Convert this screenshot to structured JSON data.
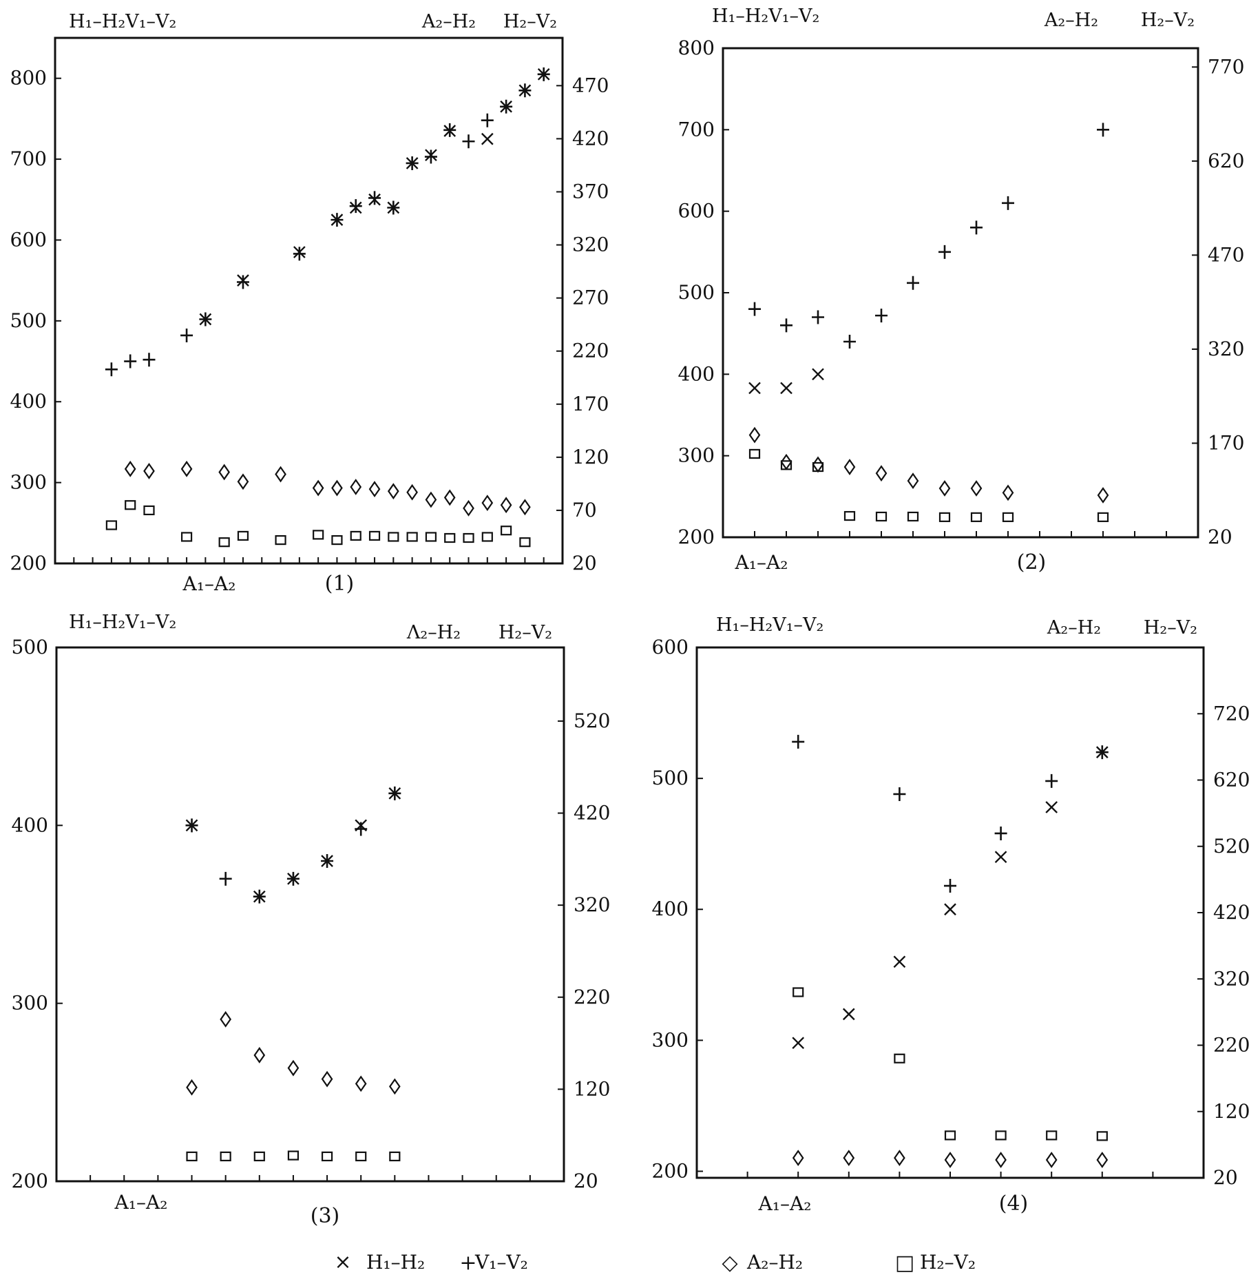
{
  "figure": {
    "legend": {
      "cross_marker": "×",
      "plus_marker": "+",
      "diamond_marker": "◇",
      "square_marker": "□",
      "h1h2": "H₁–H₂",
      "v1v2": "V₁–V₂",
      "a2h2": "A₂–H₂",
      "h2v2": "H₂–V₂"
    }
  },
  "chart_data": [
    {
      "type": "scatter",
      "panel_label": "(1)",
      "left_axis_label": "H₁–H₂V₁–V₂",
      "right_axis_labels": [
        "A₂–H₂",
        "H₂–V₂"
      ],
      "x_label": "A₁–A₂",
      "ylim_left": [
        200,
        850
      ],
      "ylim_right": [
        20,
        515
      ],
      "yticks_left": [
        200,
        300,
        400,
        500,
        600,
        700,
        800
      ],
      "yticks_right": [
        20,
        70,
        120,
        170,
        220,
        270,
        320,
        370,
        420,
        470
      ],
      "xlim": [
        0,
        27
      ],
      "x_ticks": 27,
      "series": [
        {
          "name": "H₁–H₂",
          "marker": "cross",
          "axis": "left",
          "x": [
            8,
            10,
            13,
            15,
            16,
            17,
            18,
            19,
            20,
            21,
            23,
            24,
            25,
            26
          ],
          "y": [
            502,
            550,
            585,
            625,
            640,
            650,
            640,
            695,
            705,
            735,
            725,
            765,
            785,
            805
          ]
        },
        {
          "name": "V₁–V₂",
          "marker": "plus",
          "axis": "left",
          "x": [
            3,
            4,
            5,
            7,
            8,
            10,
            13,
            15,
            16,
            17,
            18,
            19,
            20,
            21,
            22,
            23,
            24,
            25,
            26
          ],
          "y": [
            440,
            450,
            452,
            482,
            502,
            548,
            583,
            625,
            642,
            652,
            640,
            695,
            703,
            736,
            722,
            748,
            765,
            785,
            805
          ]
        },
        {
          "name": "A₂–H₂",
          "marker": "diamond",
          "axis": "right",
          "x": [
            4,
            5,
            7,
            9,
            10,
            12,
            14,
            15,
            16,
            17,
            18,
            19,
            20,
            21,
            22,
            23,
            24,
            25
          ],
          "y": [
            109,
            107,
            109,
            106,
            97,
            104,
            91,
            91,
            92,
            90,
            88,
            87,
            80,
            82,
            72,
            77,
            75,
            73
          ]
        },
        {
          "name": "H₂–V₂",
          "marker": "square",
          "axis": "right",
          "x": [
            3,
            4,
            5,
            7,
            9,
            10,
            12,
            14,
            15,
            16,
            17,
            18,
            19,
            20,
            21,
            22,
            23,
            24,
            25
          ],
          "y": [
            56,
            75,
            70,
            45,
            40,
            46,
            42,
            47,
            42,
            46,
            46,
            45,
            45,
            45,
            44,
            44,
            45,
            51,
            40
          ]
        }
      ]
    },
    {
      "type": "scatter",
      "panel_label": "(2)",
      "left_axis_label": "H₁–H₂V₁–V₂",
      "right_axis_labels": [
        "A₂–H₂",
        "H₂–V₂"
      ],
      "x_label": "A₁–A₂",
      "ylim_left": [
        200,
        800
      ],
      "ylim_right": [
        20,
        800
      ],
      "yticks_left": [
        200,
        300,
        400,
        500,
        600,
        700,
        800
      ],
      "yticks_right": [
        20,
        170,
        320,
        470,
        620,
        770
      ],
      "xlim": [
        0,
        15
      ],
      "x_ticks": 15,
      "series": [
        {
          "name": "H₁–H₂",
          "marker": "cross",
          "axis": "left",
          "x": [
            1,
            2,
            3
          ],
          "y": [
            383,
            383,
            400
          ]
        },
        {
          "name": "V₁–V₂",
          "marker": "plus",
          "axis": "left",
          "x": [
            1,
            2,
            3,
            4,
            5,
            6,
            7,
            8,
            9,
            12
          ],
          "y": [
            480,
            460,
            470,
            440,
            472,
            512,
            550,
            580,
            610,
            700
          ]
        },
        {
          "name": "A₂–H₂",
          "marker": "diamond",
          "axis": "right",
          "x": [
            1,
            2,
            3,
            4,
            5,
            6,
            7,
            8,
            9,
            12
          ],
          "y": [
            183,
            140,
            136,
            132,
            122,
            110,
            98,
            98,
            91,
            87
          ]
        },
        {
          "name": "H₂–V₂",
          "marker": "square",
          "axis": "right",
          "x": [
            1,
            2,
            3,
            4,
            5,
            6,
            7,
            8,
            9,
            12
          ],
          "y": [
            153,
            135,
            132,
            54,
            53,
            53,
            52,
            52,
            52,
            52
          ]
        }
      ]
    },
    {
      "type": "scatter",
      "panel_label": "(3)",
      "left_axis_label": "H₁–H₂V₁–V₂",
      "right_axis_labels": [
        "Λ₂–H₂",
        "H₂–V₂"
      ],
      "x_label": "A₁–A₂",
      "ylim_left": [
        200,
        500
      ],
      "ylim_right": [
        20,
        600
      ],
      "yticks_left": [
        200,
        300,
        400,
        500
      ],
      "yticks_right": [
        20,
        120,
        220,
        320,
        420,
        520
      ],
      "xlim": [
        0,
        15
      ],
      "x_ticks": 15,
      "series": [
        {
          "name": "H₁–H₂",
          "marker": "cross",
          "axis": "left",
          "x": [
            4,
            6,
            7,
            8,
            9,
            10
          ],
          "y": [
            400,
            360,
            370,
            380,
            400,
            418
          ]
        },
        {
          "name": "V₁–V₂",
          "marker": "plus",
          "axis": "left",
          "x": [
            4,
            5,
            6,
            7,
            8,
            9,
            10
          ],
          "y": [
            400,
            370,
            360,
            370,
            380,
            398,
            418
          ]
        },
        {
          "name": "A₂–H₂",
          "marker": "diamond",
          "axis": "right",
          "x": [
            4,
            5,
            6,
            7,
            8,
            9,
            10
          ],
          "y": [
            122,
            196,
            157,
            143,
            131,
            126,
            123
          ]
        },
        {
          "name": "H₂–V₂",
          "marker": "square",
          "axis": "right",
          "x": [
            4,
            5,
            6,
            7,
            8,
            9,
            10
          ],
          "y": [
            47,
            47,
            47,
            48,
            47,
            47,
            47
          ]
        }
      ]
    },
    {
      "type": "scatter",
      "panel_label": "(4)",
      "left_axis_label": "H₁–H₂V₁–V₂",
      "right_axis_labels": [
        "A₂–H₂",
        "H₂–V₂"
      ],
      "x_label": "A₁–A₂",
      "ylim_left": [
        195,
        600
      ],
      "ylim_right": [
        20,
        820
      ],
      "yticks_left": [
        200,
        300,
        400,
        500,
        600
      ],
      "yticks_right": [
        20,
        120,
        220,
        320,
        420,
        520,
        620,
        720
      ],
      "xlim": [
        0,
        10
      ],
      "x_ticks": 10,
      "series": [
        {
          "name": "H₁–H₂",
          "marker": "cross",
          "axis": "left",
          "x": [
            2,
            3,
            4,
            5,
            6,
            7,
            8
          ],
          "y": [
            298,
            320,
            360,
            400,
            440,
            478,
            520
          ]
        },
        {
          "name": "V₁–V₂",
          "marker": "plus",
          "axis": "left",
          "x": [
            2,
            4,
            5,
            6,
            7,
            8
          ],
          "y": [
            528,
            488,
            418,
            458,
            498,
            520
          ]
        },
        {
          "name": "A₂–H₂",
          "marker": "diamond",
          "axis": "right",
          "x": [
            2,
            3,
            4,
            5,
            6,
            7,
            8
          ],
          "y": [
            50,
            50,
            50,
            47,
            47,
            47,
            47
          ]
        },
        {
          "name": "H₂–V₂",
          "marker": "square",
          "axis": "right",
          "x": [
            2,
            4,
            5,
            6,
            7,
            8
          ],
          "y": [
            300,
            200,
            84,
            84,
            84,
            83
          ]
        }
      ]
    }
  ]
}
